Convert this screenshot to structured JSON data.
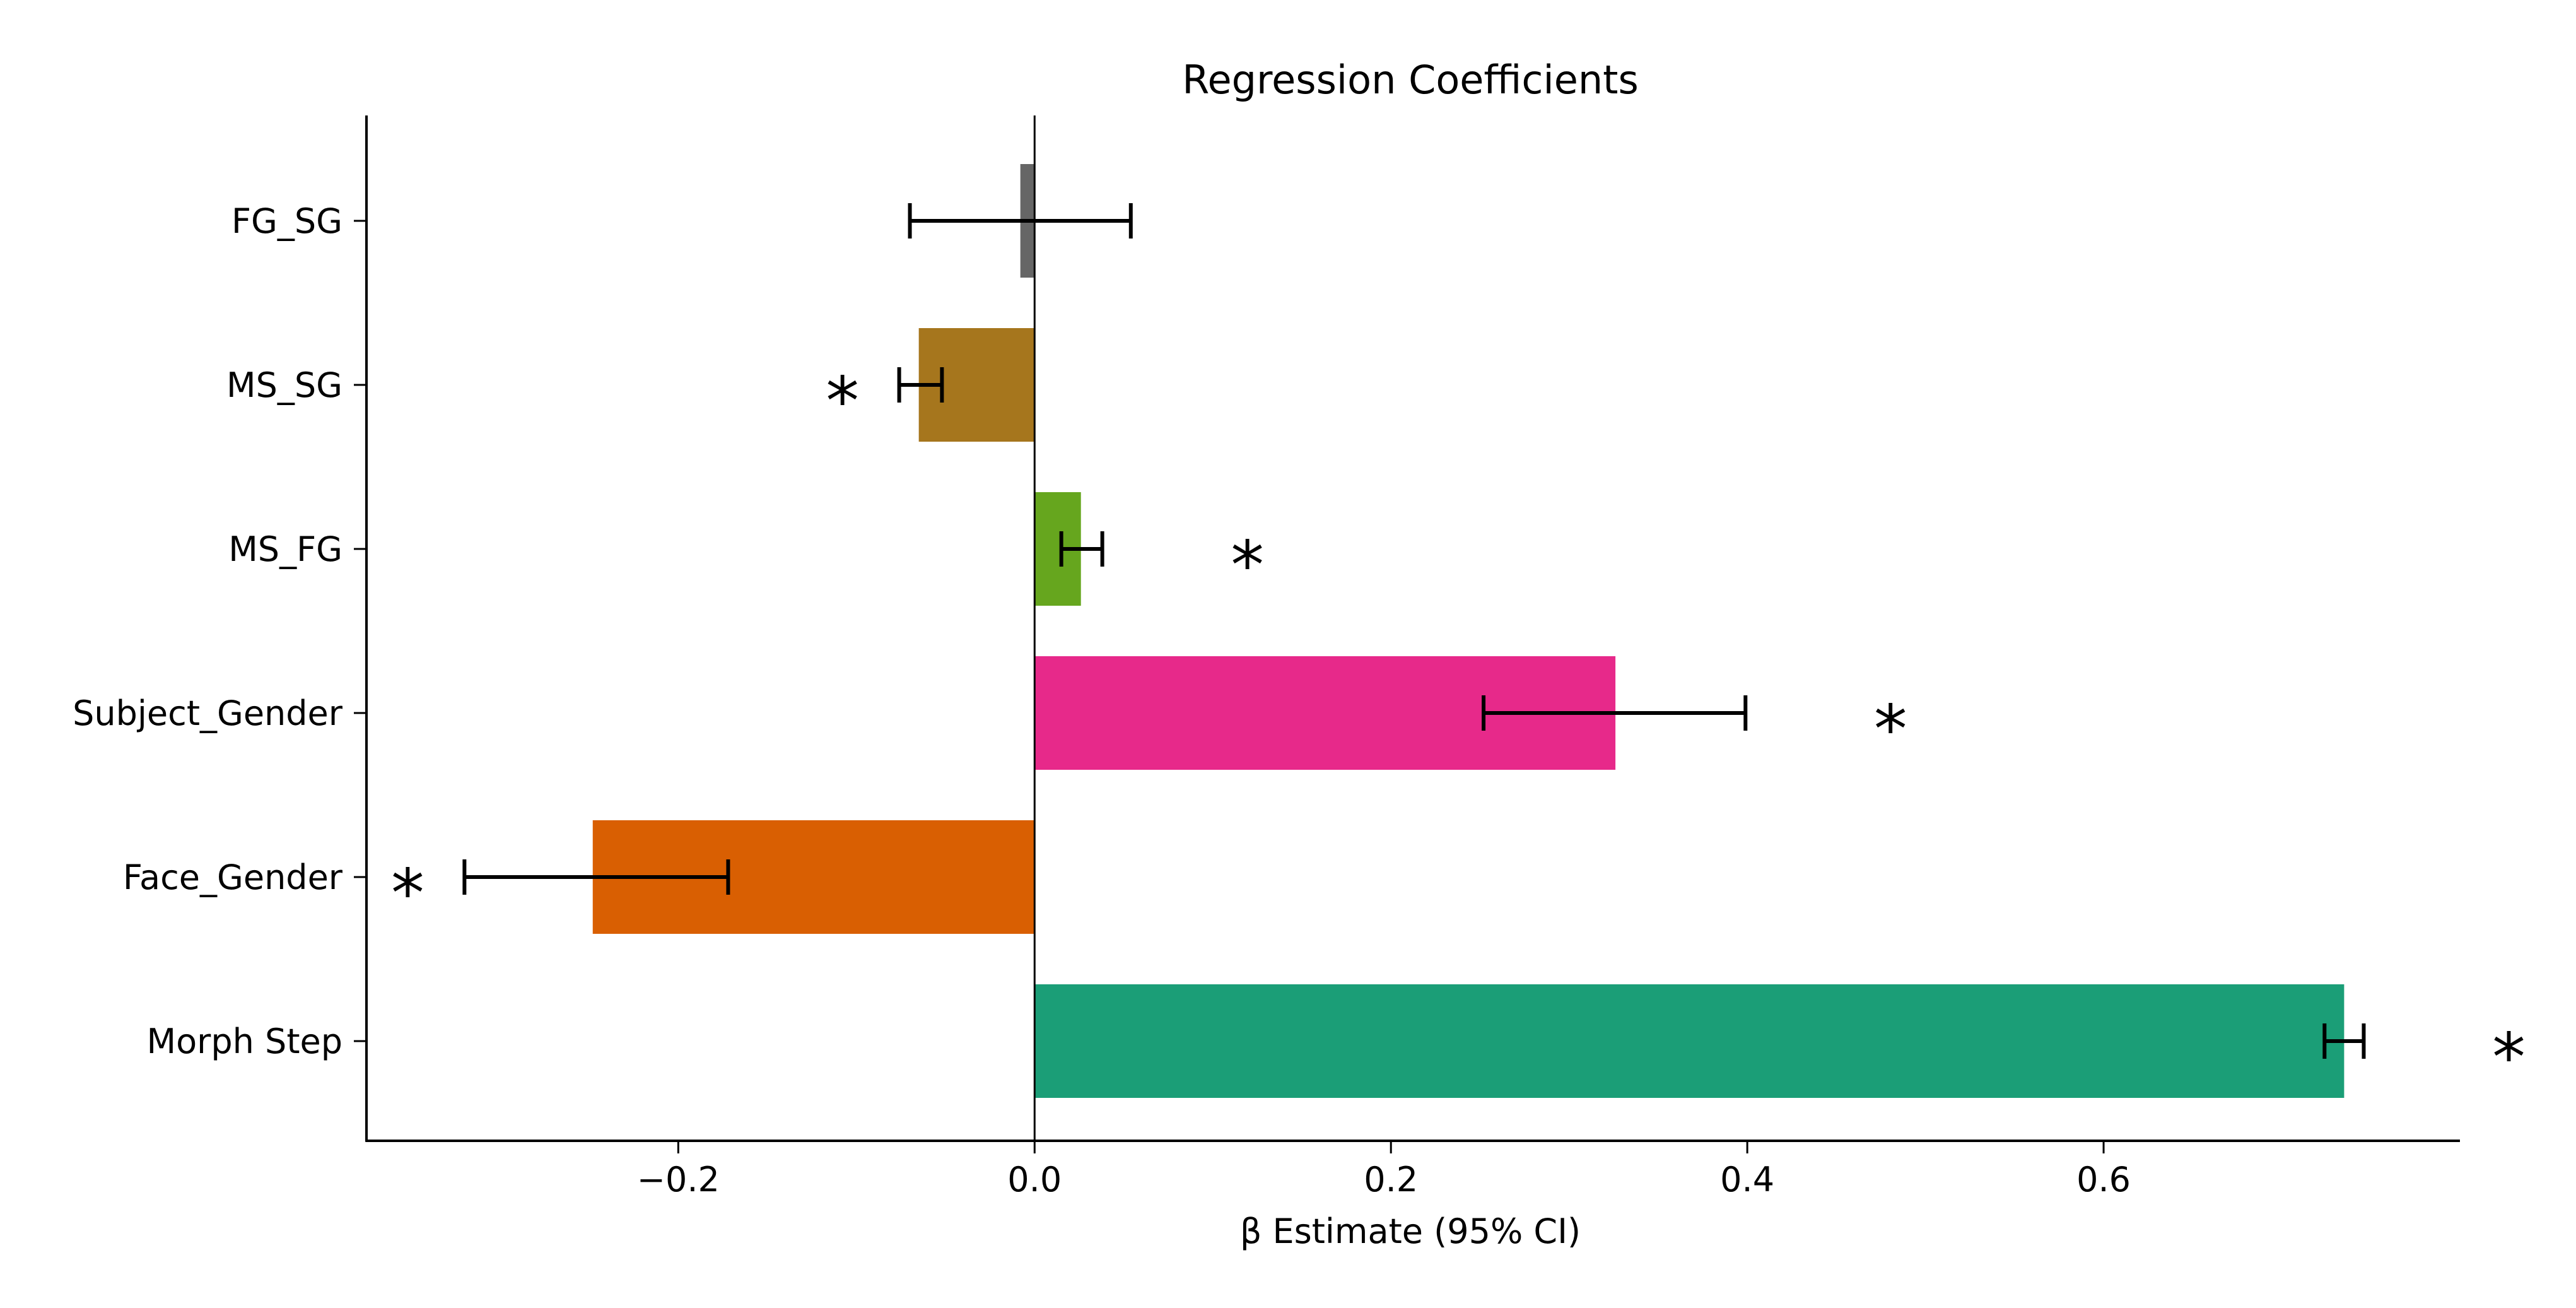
{
  "chart_data": {
    "type": "bar",
    "orientation": "horizontal",
    "title": "Regression Coefficients",
    "xlabel": "β Estimate (95% CI)",
    "ylabel": "",
    "xlim": [
      -0.375,
      0.8
    ],
    "xticks": [
      {
        "value": -0.2,
        "label": "−0.2"
      },
      {
        "value": 0.0,
        "label": "0.0"
      },
      {
        "value": 0.2,
        "label": "0.2"
      },
      {
        "value": 0.4,
        "label": "0.4"
      },
      {
        "value": 0.6,
        "label": "0.6"
      }
    ],
    "grid": false,
    "legend": "none",
    "zero_line": true,
    "categories": [
      "FG_SG",
      "MS_SG",
      "MS_FG",
      "Subject_Gender",
      "Face_Gender",
      "Morph Step"
    ],
    "values": [
      -0.008,
      -0.065,
      0.026,
      0.326,
      -0.248,
      0.735
    ],
    "ci_low": [
      -0.07,
      -0.076,
      0.015,
      0.252,
      -0.32,
      0.724
    ],
    "ci_high": [
      0.054,
      -0.052,
      0.038,
      0.399,
      -0.172,
      0.746
    ],
    "significant": [
      false,
      true,
      true,
      true,
      true,
      true
    ],
    "significance_marker": "*",
    "colors": [
      "#666666",
      "#a6761d",
      "#66a61e",
      "#e7298a",
      "#d95f02",
      "#1b9e77"
    ]
  }
}
